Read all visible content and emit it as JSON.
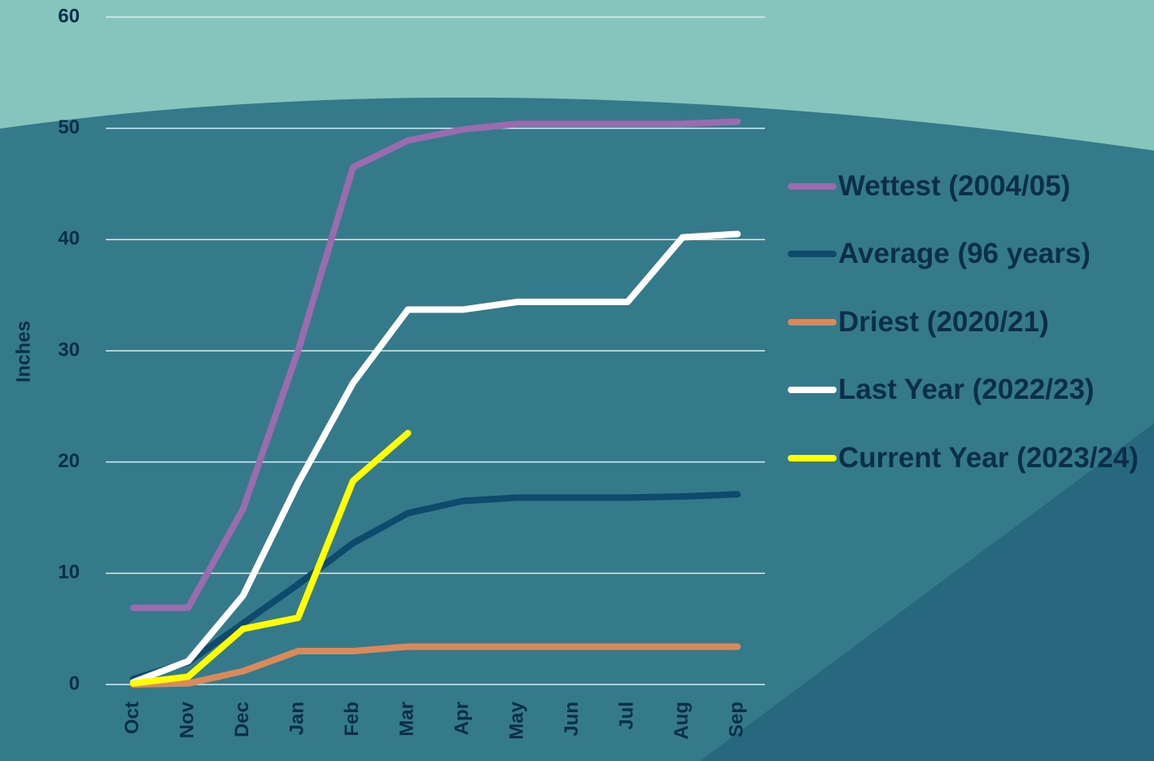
{
  "chart_data": {
    "type": "line",
    "y_label": "Inches",
    "categories": [
      "Oct",
      "Nov",
      "Dec",
      "Jan",
      "Feb",
      "Mar",
      "Apr",
      "May",
      "Jun",
      "Jul",
      "Aug",
      "Sep"
    ],
    "series": [
      {
        "name": "Wettest (2004/05)",
        "color": "#9b6bb0",
        "values": [
          6.9,
          6.9,
          15.8,
          30,
          46.5,
          48.9,
          49.9,
          50.4,
          50.4,
          50.4,
          50.4,
          50.6
        ]
      },
      {
        "name": "Average (96 years)",
        "color": "#0d4a6b",
        "values": [
          0.5,
          2,
          5.5,
          9,
          12.7,
          15.4,
          16.5,
          16.8,
          16.8,
          16.8,
          16.9,
          17.1
        ]
      },
      {
        "name": "Driest (2020/21)",
        "color": "#d9895a",
        "values": [
          0,
          0.1,
          1.2,
          3,
          3,
          3.4,
          3.4,
          3.4,
          3.4,
          3.4,
          3.4,
          3.4
        ]
      },
      {
        "name": "Last Year (2022/23)",
        "color": "#ffffff",
        "values": [
          0.2,
          2.1,
          8,
          18.1,
          27.1,
          33.7,
          33.7,
          34.4,
          34.4,
          34.4,
          40.2,
          40.5
        ]
      },
      {
        "name": "Current Year (2023/24)",
        "color": "#ffff00",
        "values": [
          0.1,
          0.7,
          5,
          6,
          18.3,
          22.6,
          null,
          null,
          null,
          null,
          null,
          null
        ]
      }
    ],
    "ylim": [
      0,
      60
    ],
    "yticks": [
      0,
      10,
      20,
      30,
      40,
      50,
      60
    ],
    "grid": true,
    "legend": "right"
  }
}
